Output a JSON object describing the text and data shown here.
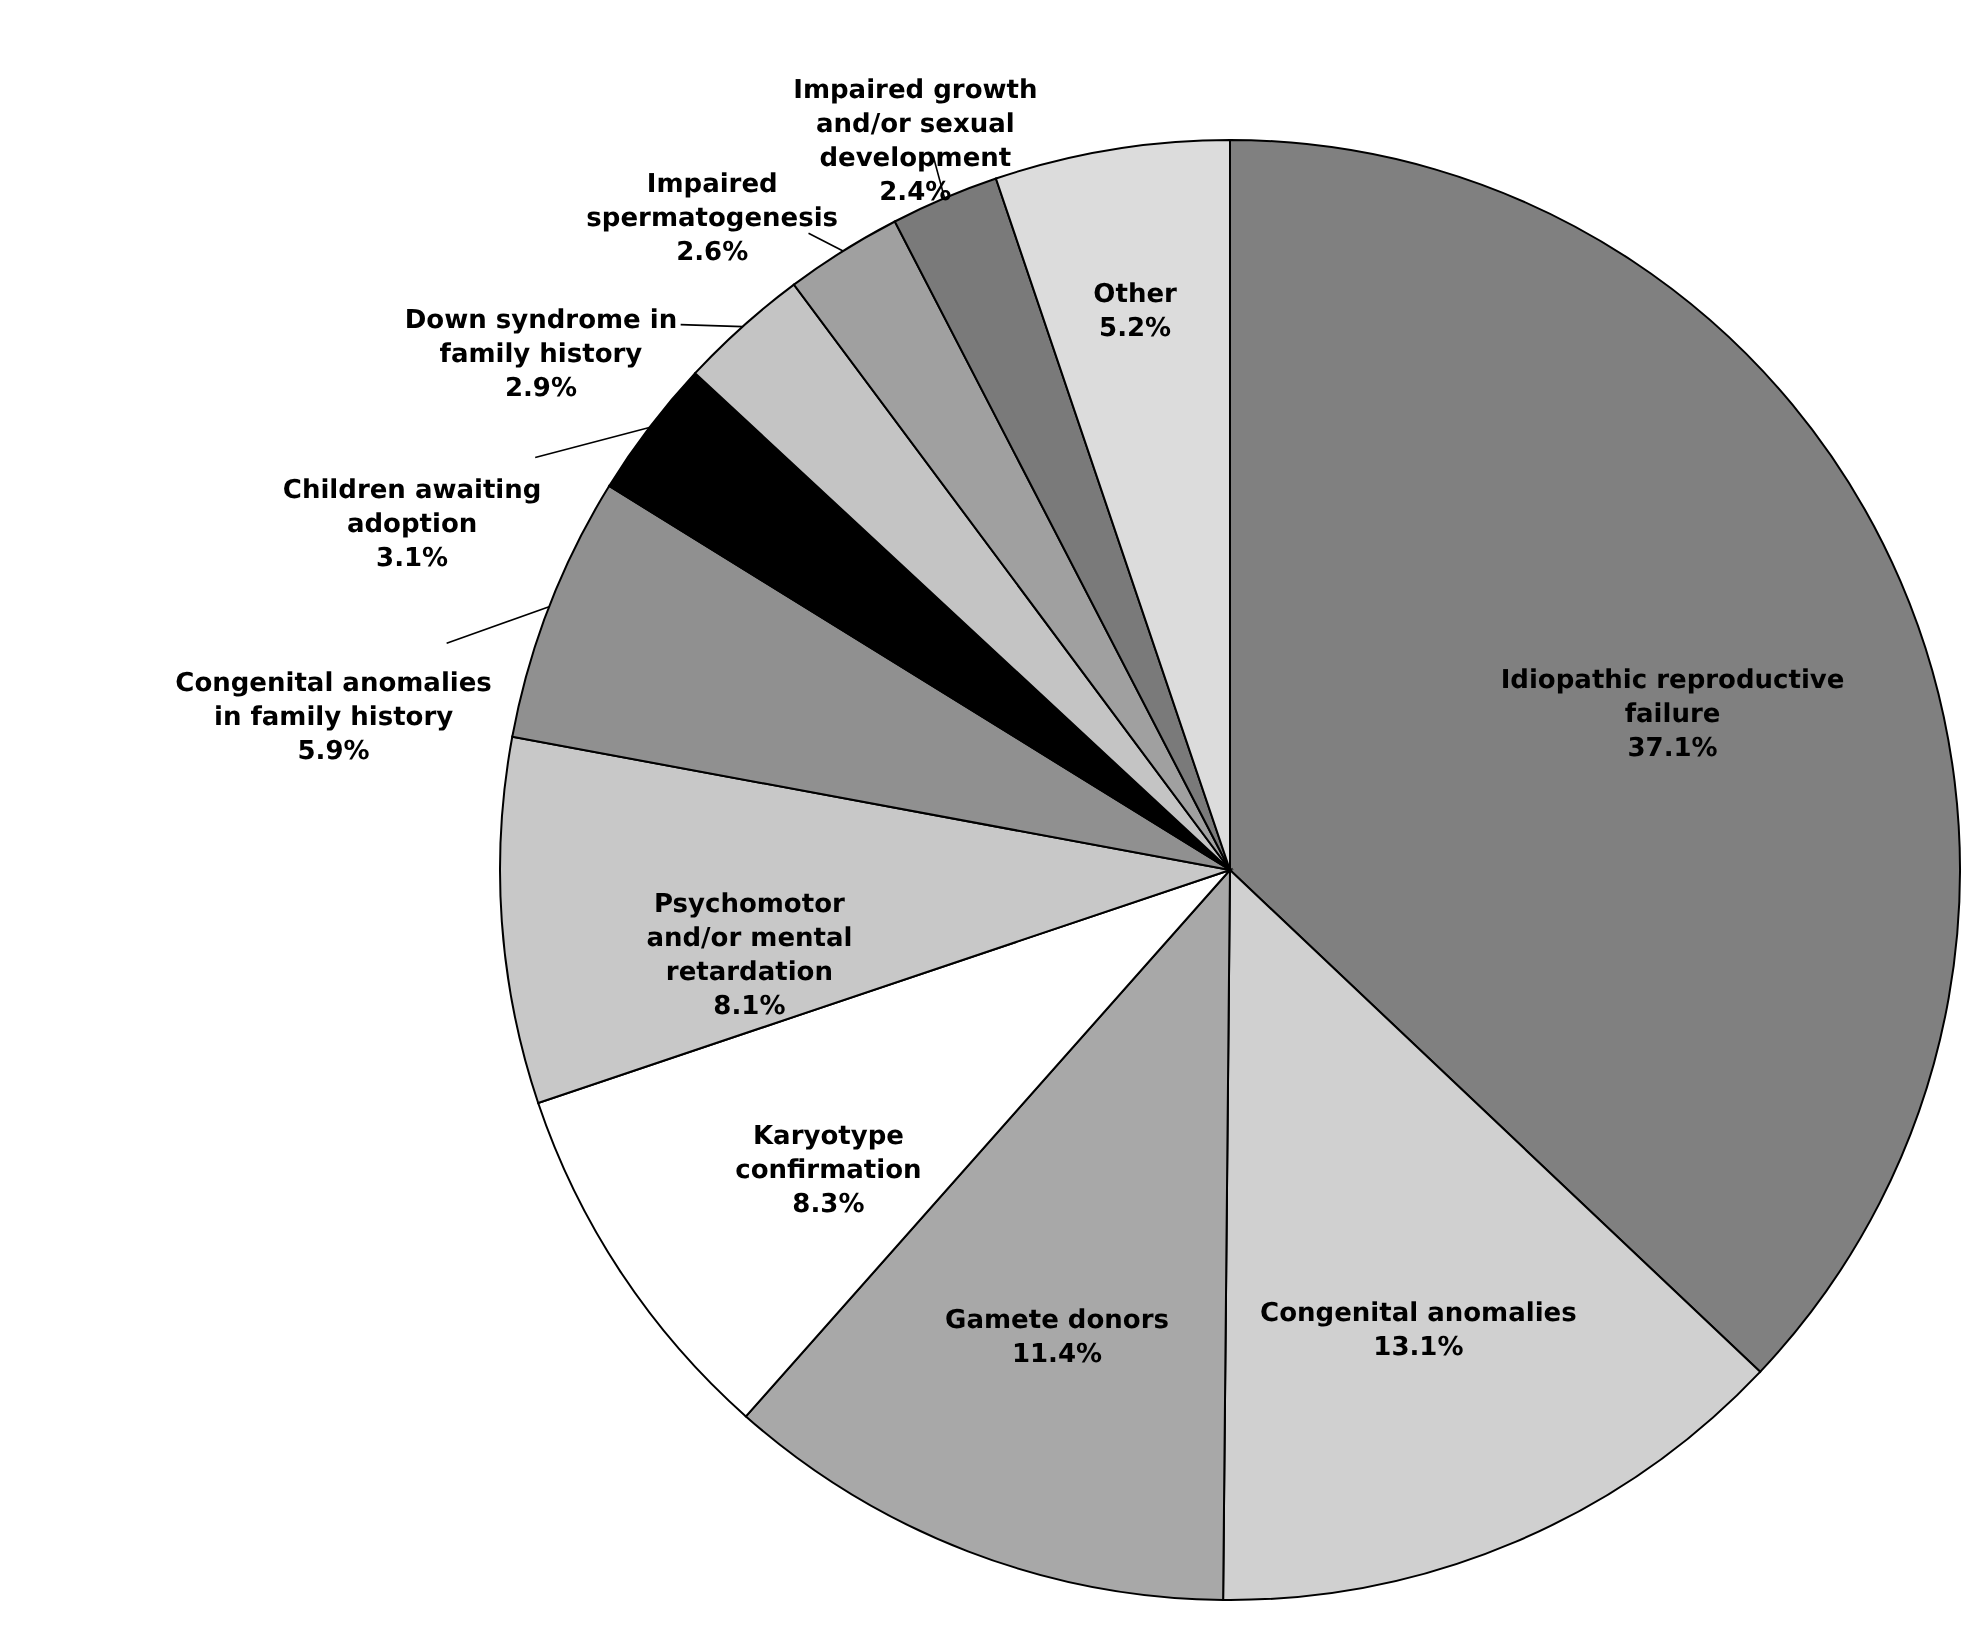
{
  "chart_data": {
    "type": "pie",
    "categories": [
      "Idiopathic reproductive failure",
      "Congenital anomalies",
      "Gamete donors",
      "Karyotype confirmation",
      "Psychomotor and/or mental retardation",
      "Congenital anomalies in family history",
      "Children awaiting adoption",
      "Down syndrome in family history",
      "Impaired spermatogenesis",
      "Impaired growth and/or sexual development",
      "Other"
    ],
    "values": [
      37.1,
      13.1,
      11.4,
      8.3,
      8.1,
      5.9,
      3.1,
      2.9,
      2.6,
      2.4,
      5.2
    ],
    "value_labels": [
      "37.1%",
      "13.1%",
      "11.4%",
      "8.3%",
      "8.1%",
      "5.9%",
      "3.1%",
      "2.9%",
      "2.6%",
      "2.4%",
      "5.2%"
    ],
    "colors": [
      "#808080",
      "#d0d0d0",
      "#a8a8a8",
      "#ffffff",
      "#c8c8c8",
      "#909090",
      "#000000",
      "#c4c4c4",
      "#a0a0a0",
      "#7a7a7a",
      "#dcdcdc"
    ]
  }
}
